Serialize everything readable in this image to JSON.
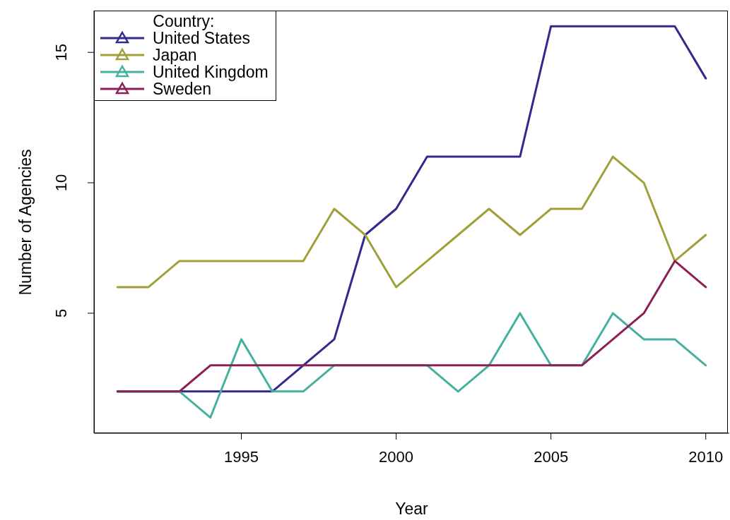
{
  "chart_data": {
    "type": "line",
    "xlabel": "Year",
    "ylabel": "Number of Agencies",
    "legend_title": "Country:",
    "legend": "top left",
    "grid": false,
    "marker": "none",
    "line_style": "solid",
    "x": [
      1991,
      1992,
      1993,
      1994,
      1995,
      1996,
      1997,
      1998,
      1999,
      2000,
      2001,
      2002,
      2003,
      2004,
      2005,
      2006,
      2007,
      2008,
      2009,
      2010
    ],
    "xlim": [
      1990.24,
      2010.76
    ],
    "xticks": [
      1995,
      2000,
      2005,
      2010
    ],
    "ylim": [
      0.4,
      16.6
    ],
    "yticks": [
      5,
      10,
      15
    ],
    "series": [
      {
        "name": "United States",
        "color": "#312a8c",
        "values": [
          2,
          2,
          2,
          2,
          2,
          2,
          3,
          4,
          8,
          9,
          11,
          11,
          11,
          11,
          16,
          16,
          16,
          16,
          16,
          14
        ]
      },
      {
        "name": "Japan",
        "color": "#a0a03a",
        "values": [
          6,
          6,
          7,
          7,
          7,
          7,
          7,
          9,
          8,
          6,
          7,
          8,
          9,
          8,
          9,
          9,
          11,
          10,
          7,
          8
        ]
      },
      {
        "name": "United Kingdom",
        "color": "#45b0a0",
        "values": [
          2,
          2,
          2,
          1,
          4,
          2,
          2,
          3,
          3,
          3,
          3,
          2,
          3,
          5,
          3,
          3,
          5,
          4,
          4,
          3
        ]
      },
      {
        "name": "Sweden",
        "color": "#8c1f55",
        "values": [
          2,
          2,
          2,
          3,
          3,
          3,
          3,
          3,
          3,
          3,
          3,
          3,
          3,
          3,
          3,
          3,
          4,
          5,
          7,
          6
        ]
      }
    ]
  }
}
